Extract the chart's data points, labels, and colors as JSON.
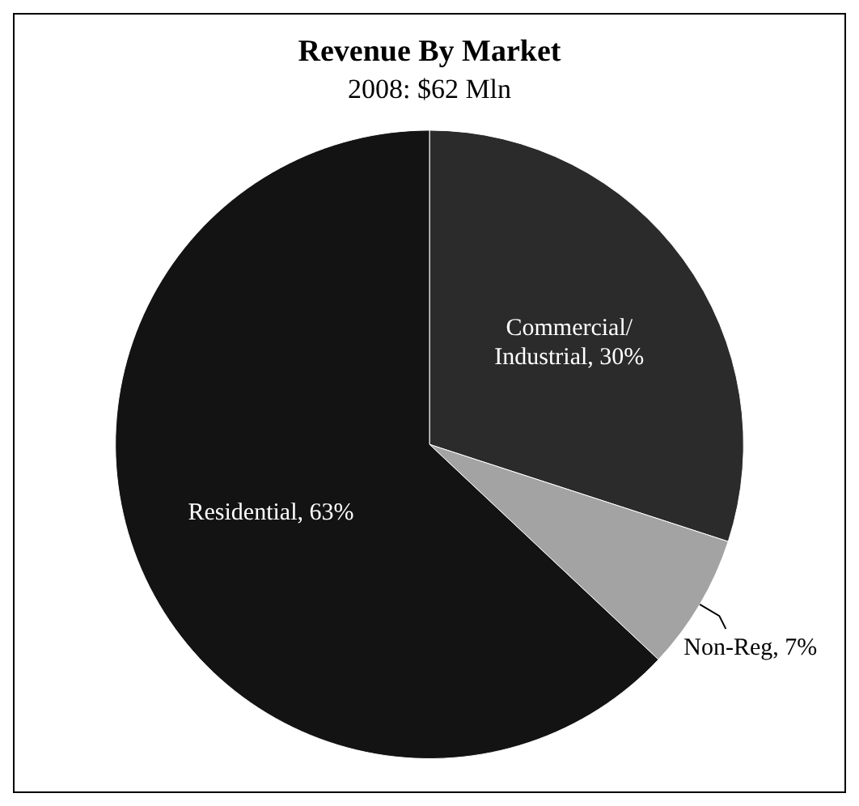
{
  "chart_data": {
    "type": "pie",
    "title": "Revenue By Market",
    "subtitle": "2008: $62 Mln",
    "categories": [
      "Commercial/Industrial",
      "Non-Reg",
      "Residential"
    ],
    "values": [
      30,
      7,
      63
    ],
    "colors": [
      "#2b2b2b",
      "#a3a3a3",
      "#131313"
    ],
    "value_labels": [
      "30%",
      "7%",
      "63%"
    ],
    "legend": false
  }
}
